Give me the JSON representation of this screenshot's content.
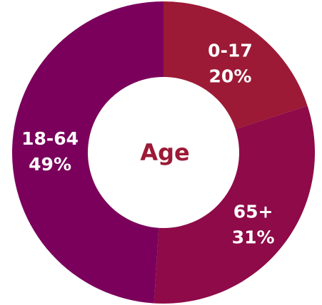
{
  "chart_data": {
    "type": "pie",
    "title": "Age",
    "donut": true,
    "categories": [
      "0-17",
      "65+",
      "18-64"
    ],
    "values": [
      20,
      31,
      49
    ],
    "value_labels": [
      "20%",
      "31%",
      "49%"
    ],
    "colors": [
      "#9c1a36",
      "#8e0a48",
      "#7a005c"
    ],
    "title_color": "#9c1a36"
  }
}
